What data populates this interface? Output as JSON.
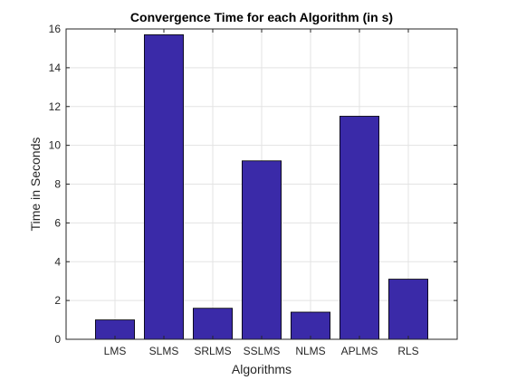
{
  "chart_data": {
    "type": "bar",
    "title": "Convergence Time for each Algorithm (in s)",
    "xlabel": "Algorithms",
    "ylabel": "Time in Seconds",
    "categories": [
      "LMS",
      "SLMS",
      "SRLMS",
      "SSLMS",
      "NLMS",
      "APLMS",
      "RLS"
    ],
    "values": [
      1.0,
      15.7,
      1.6,
      9.2,
      1.4,
      11.5,
      3.1
    ],
    "ylim": [
      0,
      16
    ],
    "yticks": [
      0,
      2,
      4,
      6,
      8,
      10,
      12,
      14,
      16
    ],
    "grid": true,
    "legend": "none",
    "colors": {
      "bar_fill": "#3a2aa8",
      "bar_edge": "#000000",
      "grid": "#e3e3e3",
      "axis": "#262626",
      "background": "#ffffff"
    }
  }
}
